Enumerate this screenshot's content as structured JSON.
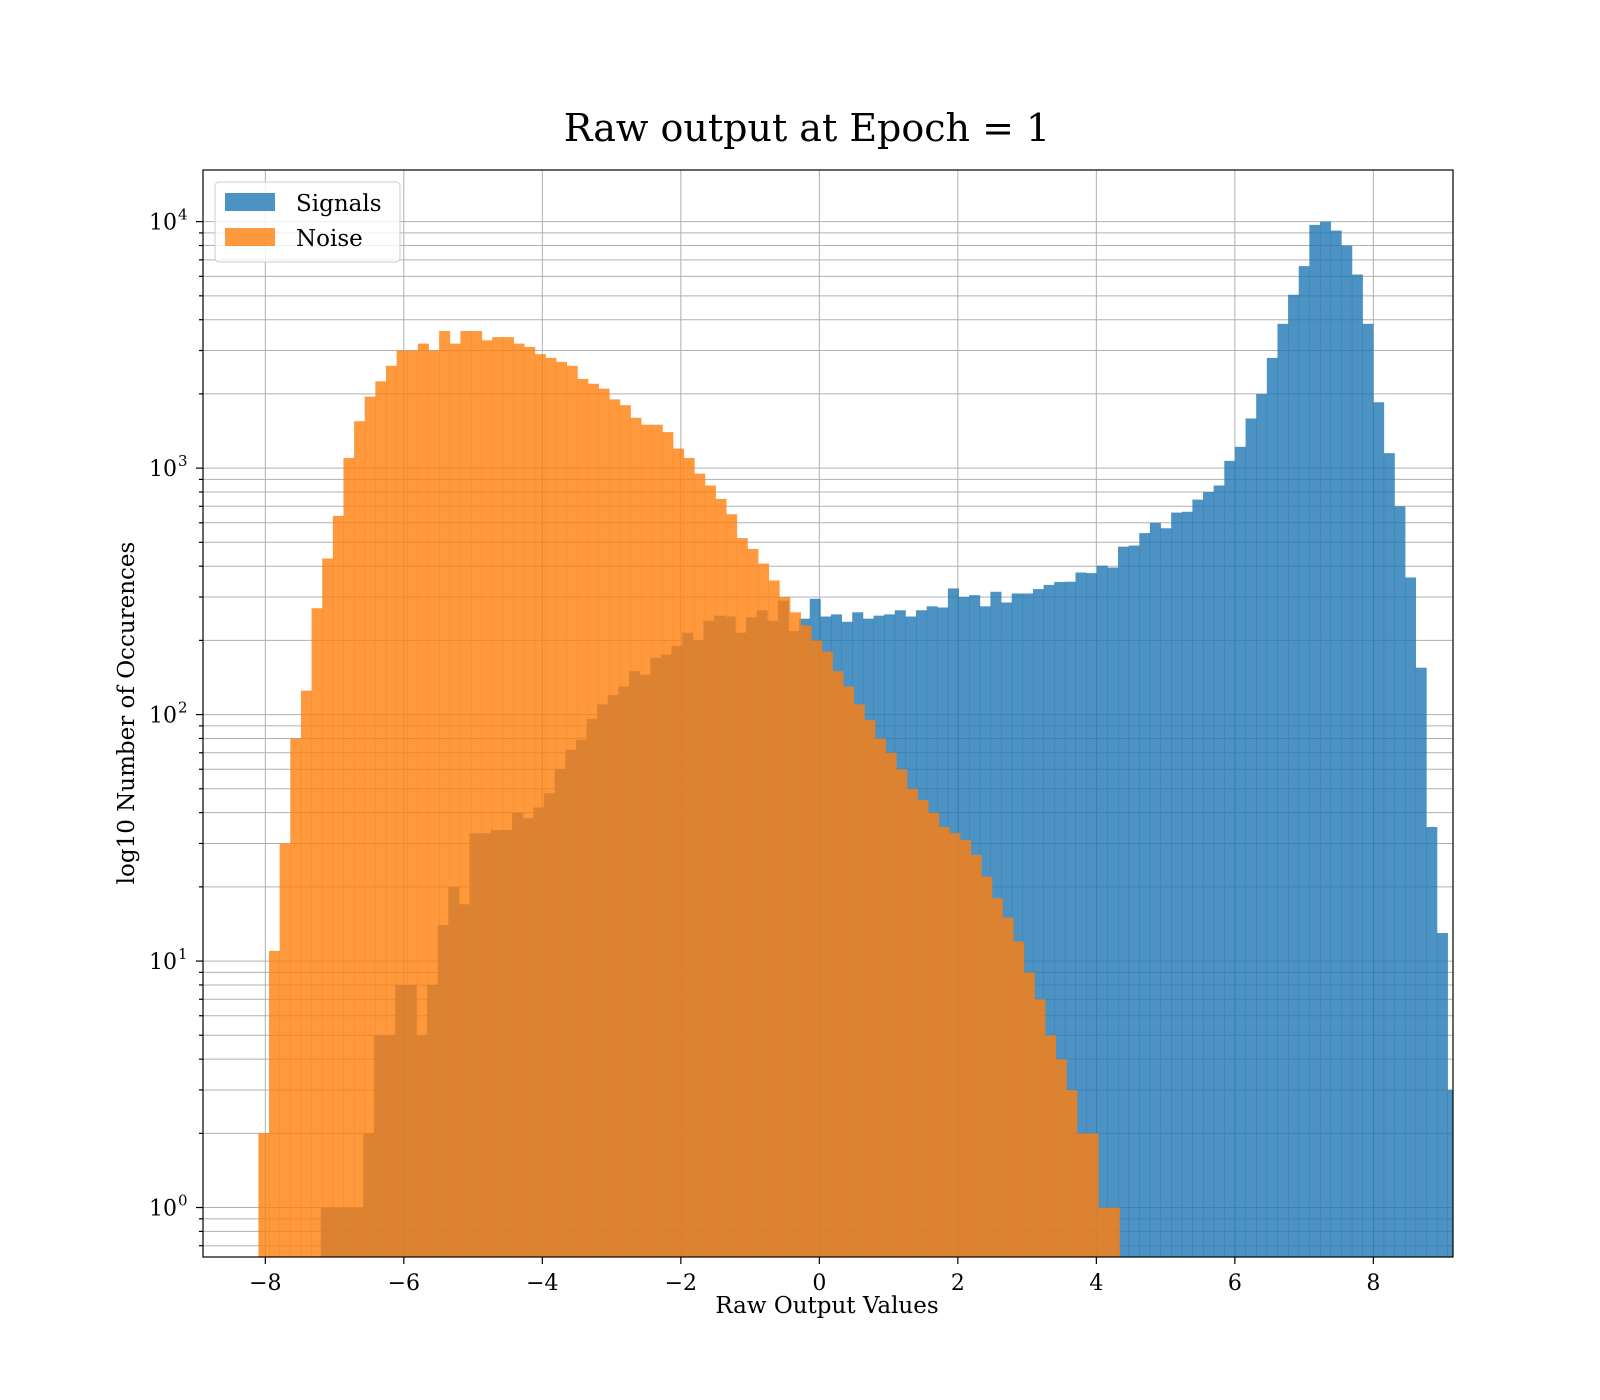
{
  "chart_data": {
    "type": "bar",
    "title": "Raw output at Epoch = 1",
    "xlabel": "Raw Output Values",
    "ylabel": "log10 Number of Occurences",
    "xlim": [
      -8.9,
      9.15
    ],
    "ylim": [
      0.63,
      16200
    ],
    "yscale": "log",
    "grid": true,
    "legend": {
      "placement": "top-left",
      "entries": [
        "Signals",
        "Noise"
      ]
    },
    "x_ticks": [
      {
        "value": -8,
        "label": "−8"
      },
      {
        "value": -6,
        "label": "−6"
      },
      {
        "value": -4,
        "label": "−4"
      },
      {
        "value": -2,
        "label": "−2"
      },
      {
        "value": 0,
        "label": "0"
      },
      {
        "value": 2,
        "label": "2"
      },
      {
        "value": 4,
        "label": "4"
      },
      {
        "value": 6,
        "label": "6"
      },
      {
        "value": 8,
        "label": "8"
      }
    ],
    "y_ticks": [
      {
        "value": 1,
        "base": "10",
        "exp": "0"
      },
      {
        "value": 10,
        "base": "10",
        "exp": "1"
      },
      {
        "value": 100,
        "base": "10",
        "exp": "2"
      },
      {
        "value": 1000,
        "base": "10",
        "exp": "3"
      },
      {
        "value": 10000,
        "base": "10",
        "exp": "4"
      }
    ],
    "series": [
      {
        "name": "Signals",
        "color": "#1f77b4",
        "opacity": 0.8,
        "bin_start": -7.2,
        "bin_width": 0.1535,
        "values": [
          1,
          1,
          1,
          1,
          2,
          5,
          5,
          8,
          8,
          5,
          8,
          14,
          20,
          17,
          33,
          33,
          34,
          34,
          40,
          38,
          42,
          48,
          60,
          72,
          79,
          96,
          110,
          120,
          130,
          150,
          145,
          170,
          175,
          190,
          215,
          200,
          240,
          252,
          250,
          215,
          248,
          265,
          240,
          290,
          218,
          245,
          295,
          250,
          255,
          238,
          260,
          245,
          252,
          255,
          265,
          250,
          265,
          275,
          272,
          325,
          300,
          305,
          275,
          315,
          285,
          310,
          310,
          323,
          336,
          345,
          346,
          377,
          375,
          402,
          395,
          480,
          485,
          545,
          600,
          570,
          660,
          665,
          745,
          800,
          850,
          1070,
          1220,
          1590,
          2000,
          2800,
          3850,
          5050,
          6600,
          9700,
          10000,
          9200,
          8000,
          6100,
          3850,
          1850,
          1150,
          700,
          360,
          155,
          35,
          13,
          3
        ]
      },
      {
        "name": "Noise",
        "color": "#ff7f0e",
        "opacity": 0.8,
        "bin_start": -8.1,
        "bin_width": 0.1535,
        "values": [
          2,
          11,
          30,
          80,
          125,
          270,
          430,
          640,
          1100,
          1550,
          1950,
          2250,
          2600,
          3000,
          3000,
          3200,
          3000,
          3600,
          3200,
          3600,
          3600,
          3300,
          3400,
          3400,
          3200,
          3100,
          2900,
          2800,
          2700,
          2600,
          2300,
          2200,
          2100,
          1900,
          1800,
          1600,
          1500,
          1500,
          1400,
          1200,
          1100,
          950,
          850,
          750,
          650,
          520,
          470,
          410,
          350,
          300,
          260,
          230,
          200,
          180,
          150,
          130,
          110,
          95,
          80,
          70,
          60,
          50,
          45,
          40,
          35,
          33,
          31,
          27,
          22,
          18,
          15,
          12,
          9,
          7,
          5,
          4,
          3,
          2,
          2,
          1,
          1
        ]
      }
    ]
  }
}
